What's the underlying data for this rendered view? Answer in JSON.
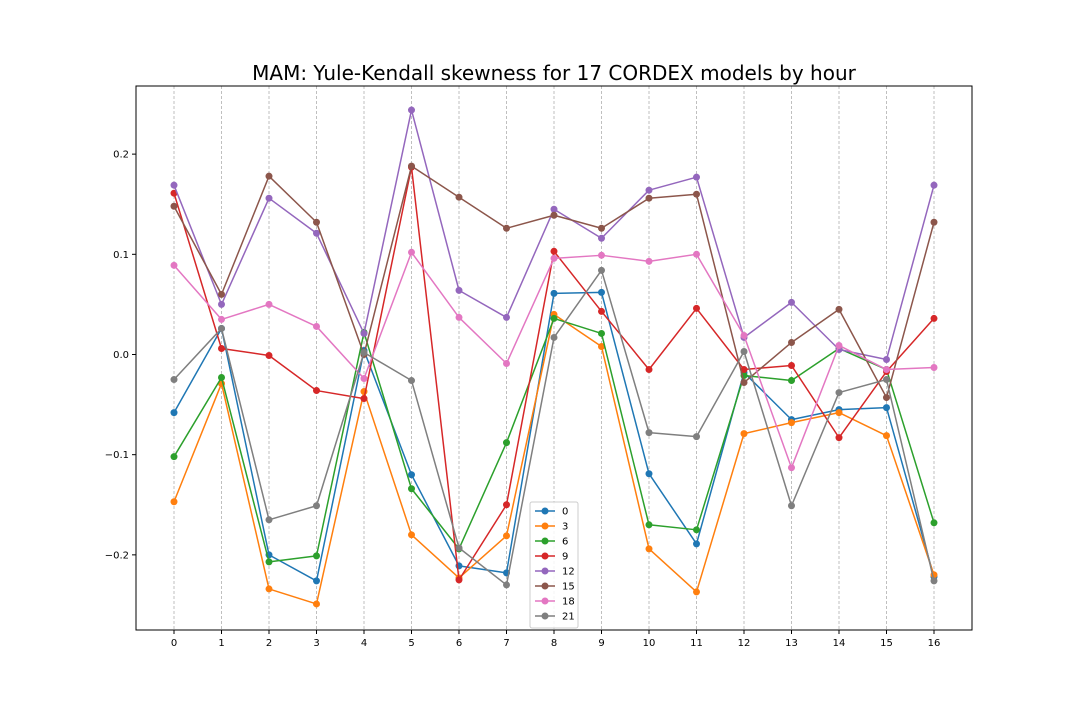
{
  "chart_data": {
    "type": "line",
    "title": "MAM: Yule-Kendall skewness for 17 CORDEX models by hour",
    "xlabel": "",
    "ylabel": "",
    "x": [
      0,
      1,
      2,
      3,
      4,
      5,
      6,
      7,
      8,
      9,
      10,
      11,
      12,
      13,
      14,
      15,
      16
    ],
    "xlim": [
      -0.8,
      16.8
    ],
    "ylim": [
      -0.275,
      0.268
    ],
    "yticks": [
      -0.2,
      -0.1,
      0.0,
      0.1,
      0.2
    ],
    "ytick_labels": [
      "−0.2",
      "−0.1",
      "0.0",
      "0.1",
      "0.2"
    ],
    "grid": "vertical dashed at x ticks",
    "legend_position": "lower center",
    "series": [
      {
        "name": "0",
        "color": "#1f77b4",
        "values": [
          -0.058,
          0.026,
          -0.2,
          -0.226,
          0.004,
          -0.12,
          -0.211,
          -0.218,
          0.061,
          0.062,
          -0.119,
          -0.189,
          -0.018,
          -0.065,
          -0.055,
          -0.053,
          -0.222
        ]
      },
      {
        "name": "3",
        "color": "#ff7f0e",
        "values": [
          -0.147,
          -0.029,
          -0.234,
          -0.249,
          -0.037,
          -0.18,
          -0.223,
          -0.181,
          0.04,
          0.008,
          -0.194,
          -0.237,
          -0.079,
          -0.068,
          -0.058,
          -0.081,
          -0.22
        ]
      },
      {
        "name": "6",
        "color": "#2ca02c",
        "values": [
          -0.102,
          -0.023,
          -0.207,
          -0.201,
          0.022,
          -0.134,
          -0.194,
          -0.088,
          0.036,
          0.021,
          -0.17,
          -0.175,
          -0.021,
          -0.026,
          0.006,
          -0.015,
          -0.168
        ]
      },
      {
        "name": "9",
        "color": "#d62728",
        "values": [
          0.161,
          0.006,
          -0.001,
          -0.036,
          -0.044,
          0.187,
          -0.225,
          -0.15,
          0.103,
          0.043,
          -0.015,
          0.046,
          -0.015,
          -0.011,
          -0.083,
          -0.017,
          0.036
        ]
      },
      {
        "name": "12",
        "color": "#9467bd",
        "values": [
          0.169,
          0.05,
          0.156,
          0.121,
          0.021,
          0.244,
          0.064,
          0.037,
          0.145,
          0.116,
          0.164,
          0.177,
          0.017,
          0.052,
          0.005,
          -0.005,
          0.169
        ]
      },
      {
        "name": "15",
        "color": "#8c564b",
        "values": [
          0.148,
          0.06,
          0.178,
          0.132,
          0.0,
          0.188,
          0.157,
          0.126,
          0.139,
          0.126,
          0.156,
          0.16,
          -0.028,
          0.012,
          0.045,
          -0.043,
          0.132
        ]
      },
      {
        "name": "18",
        "color": "#e377c2",
        "values": [
          0.089,
          0.035,
          0.05,
          0.028,
          -0.024,
          0.102,
          0.037,
          -0.009,
          0.096,
          0.099,
          0.093,
          0.1,
          0.019,
          -0.113,
          0.009,
          -0.015,
          -0.013
        ]
      },
      {
        "name": "21",
        "color": "#7f7f7f",
        "values": [
          -0.025,
          0.026,
          -0.165,
          -0.151,
          0.002,
          -0.026,
          -0.193,
          -0.23,
          0.017,
          0.084,
          -0.078,
          -0.082,
          0.003,
          -0.151,
          -0.038,
          -0.025,
          -0.226
        ]
      }
    ]
  }
}
